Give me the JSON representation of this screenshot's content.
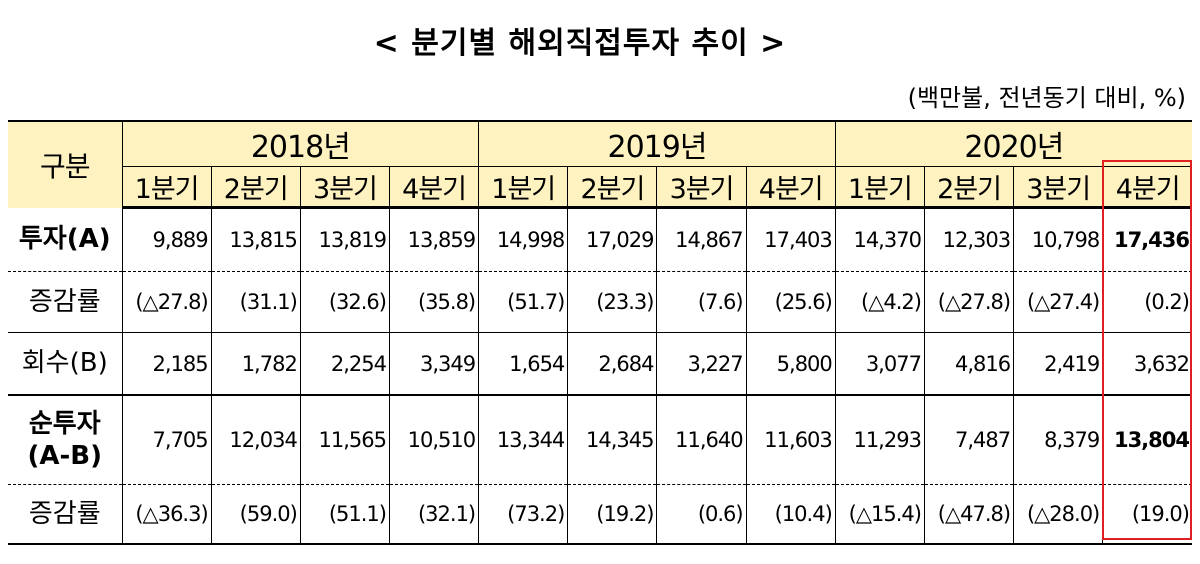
{
  "title": "< 분기별 해외직접투자 추이 >",
  "unit": "(백만불, 전년동기 대비, %)",
  "table": {
    "corner": "구분",
    "years": [
      "2018년",
      "2019년",
      "2020년"
    ],
    "quarters": [
      "1분기",
      "2분기",
      "3분기",
      "4분기",
      "1분기",
      "2분기",
      "3분기",
      "4분기",
      "1분기",
      "2분기",
      "3분기",
      "4분기"
    ],
    "rows": [
      {
        "label": "투자(A)",
        "cells": [
          "9,889",
          "13,815",
          "13,819",
          "13,859",
          "14,998",
          "17,029",
          "14,867",
          "17,403",
          "14,370",
          "12,303",
          "10,798",
          "17,436"
        ]
      },
      {
        "label": "증감률",
        "cells": [
          "(△27.8)",
          "(31.1)",
          "(32.6)",
          "(35.8)",
          "(51.7)",
          "(23.3)",
          "(7.6)",
          "(25.6)",
          "(△4.2)",
          "(△27.8)",
          "(△27.4)",
          "(0.2)"
        ]
      },
      {
        "label": "회수(B)",
        "cells": [
          "2,185",
          "1,782",
          "2,254",
          "3,349",
          "1,654",
          "2,684",
          "3,227",
          "5,800",
          "3,077",
          "4,816",
          "2,419",
          "3,632"
        ]
      },
      {
        "label": "순투자\n(A-B)",
        "cells": [
          "7,705",
          "12,034",
          "11,565",
          "10,510",
          "13,344",
          "14,345",
          "11,640",
          "11,603",
          "11,293",
          "7,487",
          "8,379",
          "13,804"
        ]
      },
      {
        "label": "증감률",
        "cells": [
          "(△36.3)",
          "(59.0)",
          "(51.1)",
          "(32.1)",
          "(73.2)",
          "(19.2)",
          "(0.6)",
          "(10.4)",
          "(△15.4)",
          "(△47.8)",
          "(△28.0)",
          "(19.0)"
        ]
      }
    ]
  }
}
